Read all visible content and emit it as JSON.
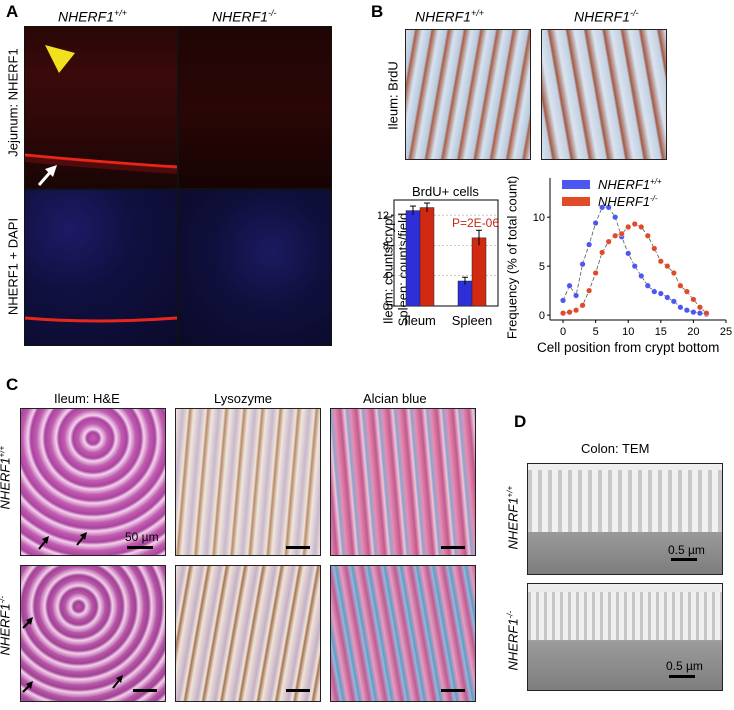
{
  "panel_labels": {
    "a": "A",
    "b": "B",
    "c": "C",
    "d": "D"
  },
  "genotypes": {
    "wt_base": "NHERF1",
    "wt_sup": "+/+",
    "ko_base": "NHERF1",
    "ko_sup": "-/-"
  },
  "panel_a": {
    "row1_label": "Jejunum: NHERF1",
    "row2_label": "NHERF1 + DAPI"
  },
  "panel_b": {
    "row_label": "Ileum: BrdU",
    "bar_title": "BrdU+ cells",
    "bar_ylabel_1": "Ileum: counts/crypt",
    "bar_ylabel_2": "Spleen: counts/field",
    "pvalue": "P=2E-06",
    "line_ylabel": "Frequency (% of total count)",
    "line_xlabel": "Cell position from crypt bottom"
  },
  "panel_c": {
    "col1": "Ileum: H&E",
    "col2": "Lysozyme",
    "col3": "Alcian blue",
    "scale": "50 µm"
  },
  "panel_d": {
    "title": "Colon: TEM",
    "scale": "0.5 µm"
  },
  "colors": {
    "wt": "#2f2fd9",
    "ko": "#d22a12",
    "wt_light": "#4a58f0",
    "ko_light": "#e04a28"
  },
  "chart_data": [
    {
      "type": "bar",
      "title": "BrdU+ cells",
      "categories": [
        "Ileum",
        "Spleen"
      ],
      "ylim": [
        0,
        14
      ],
      "yticks": [
        0,
        4,
        8,
        12
      ],
      "grid": true,
      "series": [
        {
          "name": "NHERF1+/+",
          "values": [
            12.6,
            3.3
          ],
          "errors": [
            0.6,
            0.5
          ]
        },
        {
          "name": "NHERF1-/-",
          "values": [
            13.0,
            9.0
          ],
          "errors": [
            0.6,
            1.0
          ]
        }
      ]
    },
    {
      "type": "line",
      "xlim": [
        -2,
        25
      ],
      "ylim": [
        -0.5,
        14
      ],
      "xticks": [
        0,
        5,
        10,
        15,
        20,
        25
      ],
      "yticks": [
        0,
        5,
        10
      ],
      "legend": "top-left",
      "series": [
        {
          "name": "NHERF1+/+",
          "x": [
            0,
            1,
            2,
            3,
            4,
            5,
            6,
            7,
            8,
            9,
            10,
            11,
            12,
            13,
            14,
            15,
            16,
            17,
            18,
            19,
            20,
            21,
            22
          ],
          "y": [
            1.5,
            3.0,
            2.0,
            5.2,
            7.2,
            9.4,
            11.0,
            11.0,
            10.0,
            8.0,
            6.3,
            5.0,
            4.0,
            3.0,
            2.4,
            2.2,
            1.8,
            1.4,
            0.8,
            0.5,
            0.3,
            0.2,
            0.1
          ]
        },
        {
          "name": "NHERF1-/-",
          "x": [
            0,
            1,
            2,
            3,
            4,
            5,
            6,
            7,
            8,
            9,
            10,
            11,
            12,
            13,
            14,
            15,
            16,
            17,
            18,
            19,
            20,
            21,
            22
          ],
          "y": [
            0.2,
            0.3,
            0.5,
            1.0,
            2.5,
            4.3,
            6.4,
            7.5,
            8.1,
            8.3,
            9.0,
            9.3,
            9.0,
            8.1,
            6.8,
            5.5,
            5.0,
            4.3,
            3.0,
            2.4,
            1.6,
            0.8,
            0.2
          ]
        }
      ]
    }
  ]
}
